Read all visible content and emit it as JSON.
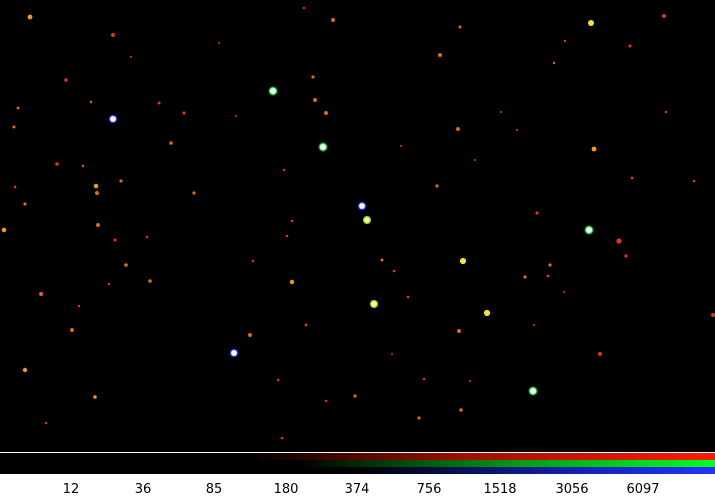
{
  "image_view": {
    "background_color": "#000000",
    "star_colors": {
      "red": "#e8321c",
      "orange": "#e06a1a",
      "amber": "#f09a1e",
      "yellow": "#f2e23a",
      "green_white": "#e8fff0",
      "blue_white": "#ffffff"
    }
  },
  "colorbar": {
    "channels": [
      {
        "name": "red",
        "color": "#ff1a00"
      },
      {
        "name": "green",
        "color": "#00ff22"
      },
      {
        "name": "blue",
        "color": "#2233ff"
      }
    ],
    "tick_labels": [
      "12",
      "36",
      "85",
      "180",
      "374",
      "756",
      "1518",
      "3056",
      "6097"
    ]
  }
}
